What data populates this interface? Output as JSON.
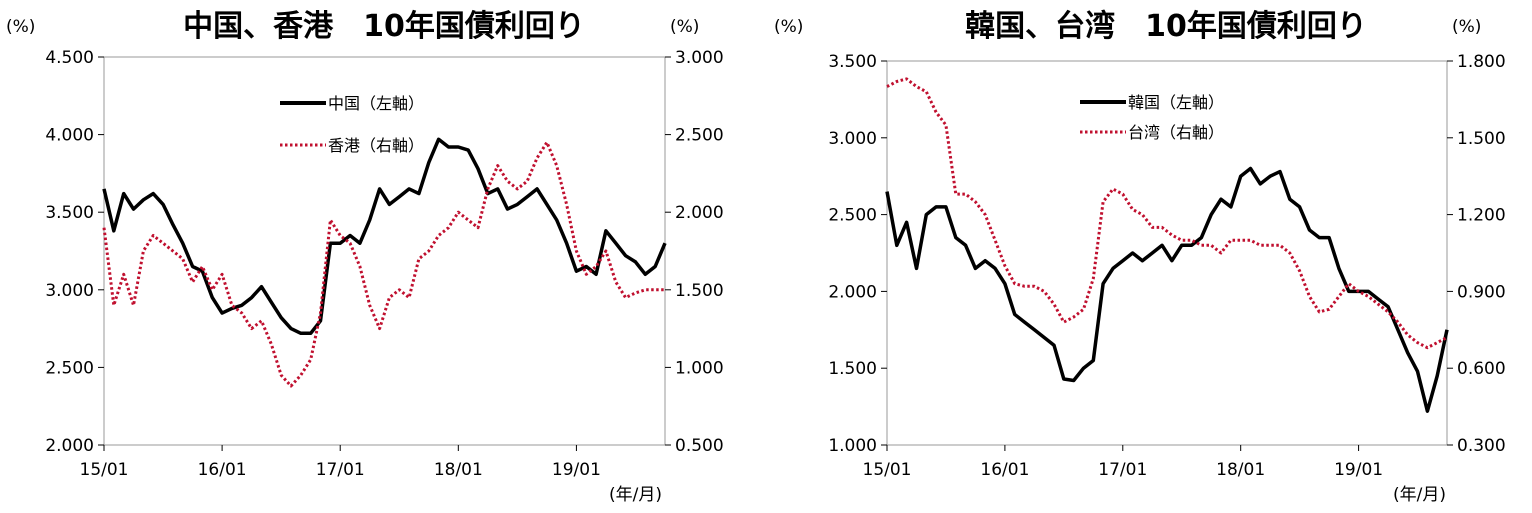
{
  "charts": [
    {
      "title": "中国、香港　10年国債利回り",
      "left_unit": "(%)",
      "right_unit": "(%)",
      "left_ticks": [
        "4.500",
        "4.000",
        "3.500",
        "3.000",
        "2.500",
        "2.000"
      ],
      "right_ticks": [
        "3.000",
        "2.500",
        "2.000",
        "1.500",
        "1.000",
        "0.500"
      ],
      "x_ticks": [
        "15/01",
        "16/01",
        "17/01",
        "18/01",
        "19/01"
      ],
      "x_unit": "(年/月)",
      "legend": [
        "中国（左軸）",
        "香港（右軸）"
      ]
    },
    {
      "title": "韓国、台湾　10年国債利回り",
      "left_unit": "(%)",
      "right_unit": "(%)",
      "left_ticks": [
        "3.500",
        "3.000",
        "2.500",
        "2.000",
        "1.500",
        "1.000"
      ],
      "right_ticks": [
        "1.800",
        "1.500",
        "1.200",
        "0.900",
        "0.600",
        "0.300"
      ],
      "x_ticks": [
        "15/01",
        "16/01",
        "17/01",
        "18/01",
        "19/01"
      ],
      "x_unit": "(年/月)",
      "legend": [
        "韓国（左軸）",
        "台湾（右軸）"
      ]
    }
  ],
  "chart_data": [
    {
      "type": "line",
      "title": "中国、香港　10年国債利回り",
      "xlabel": "(年/月)",
      "ylabel": "(%)",
      "y2label": "(%)",
      "ylim": [
        2.0,
        4.5
      ],
      "y2lim": [
        0.5,
        3.0
      ],
      "x_range": [
        "2015-01",
        "2019-10"
      ],
      "series": [
        {
          "name": "中国（左軸）",
          "axis": "left",
          "color": "#000000",
          "style": "solid",
          "points": [
            [
              "2015-01",
              3.65
            ],
            [
              "2015-02",
              3.38
            ],
            [
              "2015-03",
              3.62
            ],
            [
              "2015-04",
              3.52
            ],
            [
              "2015-05",
              3.58
            ],
            [
              "2015-06",
              3.62
            ],
            [
              "2015-07",
              3.55
            ],
            [
              "2015-08",
              3.42
            ],
            [
              "2015-09",
              3.3
            ],
            [
              "2015-10",
              3.15
            ],
            [
              "2015-11",
              3.12
            ],
            [
              "2015-12",
              2.95
            ],
            [
              "2016-01",
              2.85
            ],
            [
              "2016-02",
              2.88
            ],
            [
              "2016-03",
              2.9
            ],
            [
              "2016-04",
              2.95
            ],
            [
              "2016-05",
              3.02
            ],
            [
              "2016-06",
              2.92
            ],
            [
              "2016-07",
              2.82
            ],
            [
              "2016-08",
              2.75
            ],
            [
              "2016-09",
              2.72
            ],
            [
              "2016-10",
              2.72
            ],
            [
              "2016-11",
              2.8
            ],
            [
              "2016-12",
              3.3
            ],
            [
              "2017-01",
              3.3
            ],
            [
              "2017-02",
              3.35
            ],
            [
              "2017-03",
              3.3
            ],
            [
              "2017-04",
              3.45
            ],
            [
              "2017-05",
              3.65
            ],
            [
              "2017-06",
              3.55
            ],
            [
              "2017-07",
              3.6
            ],
            [
              "2017-08",
              3.65
            ],
            [
              "2017-09",
              3.62
            ],
            [
              "2017-10",
              3.82
            ],
            [
              "2017-11",
              3.97
            ],
            [
              "2017-12",
              3.92
            ],
            [
              "2018-01",
              3.92
            ],
            [
              "2018-02",
              3.9
            ],
            [
              "2018-03",
              3.78
            ],
            [
              "2018-04",
              3.62
            ],
            [
              "2018-05",
              3.65
            ],
            [
              "2018-06",
              3.52
            ],
            [
              "2018-07",
              3.55
            ],
            [
              "2018-08",
              3.6
            ],
            [
              "2018-09",
              3.65
            ],
            [
              "2018-10",
              3.55
            ],
            [
              "2018-11",
              3.45
            ],
            [
              "2018-12",
              3.3
            ],
            [
              "2019-01",
              3.12
            ],
            [
              "2019-02",
              3.15
            ],
            [
              "2019-03",
              3.1
            ],
            [
              "2019-04",
              3.38
            ],
            [
              "2019-05",
              3.3
            ],
            [
              "2019-06",
              3.22
            ],
            [
              "2019-07",
              3.18
            ],
            [
              "2019-08",
              3.1
            ],
            [
              "2019-09",
              3.15
            ],
            [
              "2019-10",
              3.3
            ]
          ]
        },
        {
          "name": "香港（右軸）",
          "axis": "right",
          "color": "#c0102f",
          "style": "dotted",
          "points": [
            [
              "2015-01",
              1.9
            ],
            [
              "2015-02",
              1.4
            ],
            [
              "2015-03",
              1.6
            ],
            [
              "2015-04",
              1.4
            ],
            [
              "2015-05",
              1.75
            ],
            [
              "2015-06",
              1.85
            ],
            [
              "2015-07",
              1.8
            ],
            [
              "2015-08",
              1.75
            ],
            [
              "2015-09",
              1.7
            ],
            [
              "2015-10",
              1.55
            ],
            [
              "2015-11",
              1.65
            ],
            [
              "2015-12",
              1.5
            ],
            [
              "2016-01",
              1.6
            ],
            [
              "2016-02",
              1.4
            ],
            [
              "2016-03",
              1.35
            ],
            [
              "2016-04",
              1.25
            ],
            [
              "2016-05",
              1.3
            ],
            [
              "2016-06",
              1.15
            ],
            [
              "2016-07",
              0.95
            ],
            [
              "2016-08",
              0.88
            ],
            [
              "2016-09",
              0.95
            ],
            [
              "2016-10",
              1.05
            ],
            [
              "2016-11",
              1.35
            ],
            [
              "2016-12",
              1.95
            ],
            [
              "2017-01",
              1.85
            ],
            [
              "2017-02",
              1.8
            ],
            [
              "2017-03",
              1.65
            ],
            [
              "2017-04",
              1.4
            ],
            [
              "2017-05",
              1.25
            ],
            [
              "2017-06",
              1.45
            ],
            [
              "2017-07",
              1.5
            ],
            [
              "2017-08",
              1.45
            ],
            [
              "2017-09",
              1.7
            ],
            [
              "2017-10",
              1.75
            ],
            [
              "2017-11",
              1.85
            ],
            [
              "2017-12",
              1.9
            ],
            [
              "2018-01",
              2.0
            ],
            [
              "2018-02",
              1.95
            ],
            [
              "2018-03",
              1.9
            ],
            [
              "2018-04",
              2.15
            ],
            [
              "2018-05",
              2.3
            ],
            [
              "2018-06",
              2.2
            ],
            [
              "2018-07",
              2.15
            ],
            [
              "2018-08",
              2.2
            ],
            [
              "2018-09",
              2.35
            ],
            [
              "2018-10",
              2.45
            ],
            [
              "2018-11",
              2.3
            ],
            [
              "2018-12",
              2.05
            ],
            [
              "2019-01",
              1.75
            ],
            [
              "2019-02",
              1.6
            ],
            [
              "2019-03",
              1.65
            ],
            [
              "2019-04",
              1.75
            ],
            [
              "2019-05",
              1.55
            ],
            [
              "2019-06",
              1.45
            ],
            [
              "2019-07",
              1.48
            ],
            [
              "2019-08",
              1.5
            ],
            [
              "2019-09",
              1.5
            ],
            [
              "2019-10",
              1.5
            ]
          ]
        }
      ]
    },
    {
      "type": "line",
      "title": "韓国、台湾　10年国債利回り",
      "xlabel": "(年/月)",
      "ylabel": "(%)",
      "y2label": "(%)",
      "ylim": [
        1.0,
        3.5
      ],
      "y2lim": [
        0.3,
        1.8
      ],
      "x_range": [
        "2015-01",
        "2019-10"
      ],
      "series": [
        {
          "name": "韓国（左軸）",
          "axis": "left",
          "color": "#000000",
          "style": "solid",
          "points": [
            [
              "2015-01",
              2.65
            ],
            [
              "2015-02",
              2.3
            ],
            [
              "2015-03",
              2.45
            ],
            [
              "2015-04",
              2.15
            ],
            [
              "2015-05",
              2.5
            ],
            [
              "2015-06",
              2.55
            ],
            [
              "2015-07",
              2.55
            ],
            [
              "2015-08",
              2.35
            ],
            [
              "2015-09",
              2.3
            ],
            [
              "2015-10",
              2.15
            ],
            [
              "2015-11",
              2.2
            ],
            [
              "2015-12",
              2.15
            ],
            [
              "2016-01",
              2.05
            ],
            [
              "2016-02",
              1.85
            ],
            [
              "2016-03",
              1.8
            ],
            [
              "2016-04",
              1.75
            ],
            [
              "2016-05",
              1.7
            ],
            [
              "2016-06",
              1.65
            ],
            [
              "2016-07",
              1.43
            ],
            [
              "2016-08",
              1.42
            ],
            [
              "2016-09",
              1.5
            ],
            [
              "2016-10",
              1.55
            ],
            [
              "2016-11",
              2.05
            ],
            [
              "2016-12",
              2.15
            ],
            [
              "2017-01",
              2.2
            ],
            [
              "2017-02",
              2.25
            ],
            [
              "2017-03",
              2.2
            ],
            [
              "2017-04",
              2.25
            ],
            [
              "2017-05",
              2.3
            ],
            [
              "2017-06",
              2.2
            ],
            [
              "2017-07",
              2.3
            ],
            [
              "2017-08",
              2.3
            ],
            [
              "2017-09",
              2.35
            ],
            [
              "2017-10",
              2.5
            ],
            [
              "2017-11",
              2.6
            ],
            [
              "2017-12",
              2.55
            ],
            [
              "2018-01",
              2.75
            ],
            [
              "2018-02",
              2.8
            ],
            [
              "2018-03",
              2.7
            ],
            [
              "2018-04",
              2.75
            ],
            [
              "2018-05",
              2.78
            ],
            [
              "2018-06",
              2.6
            ],
            [
              "2018-07",
              2.55
            ],
            [
              "2018-08",
              2.4
            ],
            [
              "2018-09",
              2.35
            ],
            [
              "2018-10",
              2.35
            ],
            [
              "2018-11",
              2.15
            ],
            [
              "2018-12",
              2.0
            ],
            [
              "2019-01",
              2.0
            ],
            [
              "2019-02",
              2.0
            ],
            [
              "2019-03",
              1.95
            ],
            [
              "2019-04",
              1.9
            ],
            [
              "2019-05",
              1.75
            ],
            [
              "2019-06",
              1.6
            ],
            [
              "2019-07",
              1.48
            ],
            [
              "2019-08",
              1.22
            ],
            [
              "2019-09",
              1.45
            ],
            [
              "2019-10",
              1.75
            ]
          ]
        },
        {
          "name": "台湾（右軸）",
          "axis": "right",
          "color": "#c0102f",
          "style": "dotted",
          "points": [
            [
              "2015-01",
              1.7
            ],
            [
              "2015-02",
              1.72
            ],
            [
              "2015-03",
              1.73
            ],
            [
              "2015-04",
              1.7
            ],
            [
              "2015-05",
              1.68
            ],
            [
              "2015-06",
              1.6
            ],
            [
              "2015-07",
              1.55
            ],
            [
              "2015-08",
              1.28
            ],
            [
              "2015-09",
              1.28
            ],
            [
              "2015-10",
              1.25
            ],
            [
              "2015-11",
              1.2
            ],
            [
              "2015-12",
              1.1
            ],
            [
              "2016-01",
              1.0
            ],
            [
              "2016-02",
              0.93
            ],
            [
              "2016-03",
              0.92
            ],
            [
              "2016-04",
              0.92
            ],
            [
              "2016-05",
              0.9
            ],
            [
              "2016-06",
              0.85
            ],
            [
              "2016-07",
              0.78
            ],
            [
              "2016-08",
              0.8
            ],
            [
              "2016-09",
              0.83
            ],
            [
              "2016-10",
              0.95
            ],
            [
              "2016-11",
              1.25
            ],
            [
              "2016-12",
              1.3
            ],
            [
              "2017-01",
              1.28
            ],
            [
              "2017-02",
              1.22
            ],
            [
              "2017-03",
              1.2
            ],
            [
              "2017-04",
              1.15
            ],
            [
              "2017-05",
              1.15
            ],
            [
              "2017-06",
              1.12
            ],
            [
              "2017-07",
              1.1
            ],
            [
              "2017-08",
              1.1
            ],
            [
              "2017-09",
              1.08
            ],
            [
              "2017-10",
              1.08
            ],
            [
              "2017-11",
              1.05
            ],
            [
              "2017-12",
              1.1
            ],
            [
              "2018-01",
              1.1
            ],
            [
              "2018-02",
              1.1
            ],
            [
              "2018-03",
              1.08
            ],
            [
              "2018-04",
              1.08
            ],
            [
              "2018-05",
              1.08
            ],
            [
              "2018-06",
              1.05
            ],
            [
              "2018-07",
              0.98
            ],
            [
              "2018-08",
              0.88
            ],
            [
              "2018-09",
              0.82
            ],
            [
              "2018-10",
              0.83
            ],
            [
              "2018-11",
              0.88
            ],
            [
              "2018-12",
              0.93
            ],
            [
              "2019-01",
              0.9
            ],
            [
              "2019-02",
              0.88
            ],
            [
              "2019-03",
              0.85
            ],
            [
              "2019-04",
              0.82
            ],
            [
              "2019-05",
              0.78
            ],
            [
              "2019-06",
              0.73
            ],
            [
              "2019-07",
              0.7
            ],
            [
              "2019-08",
              0.68
            ],
            [
              "2019-09",
              0.7
            ],
            [
              "2019-10",
              0.72
            ]
          ]
        }
      ]
    }
  ]
}
